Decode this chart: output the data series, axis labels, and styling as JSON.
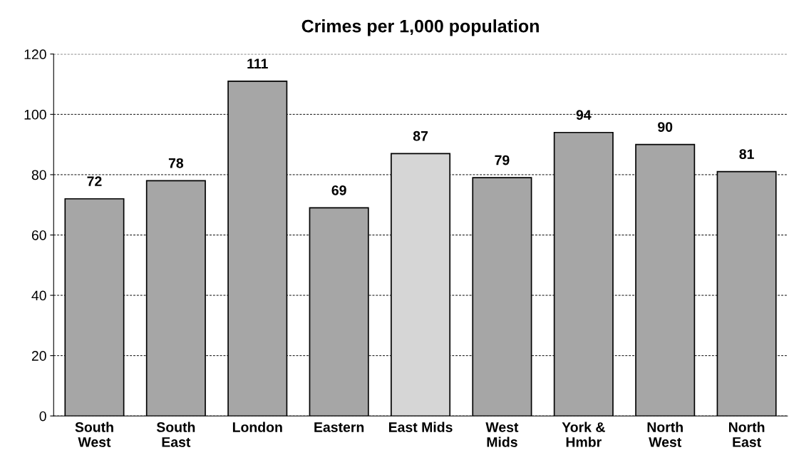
{
  "chart_data": {
    "type": "bar",
    "title": "Crimes per 1,000 population",
    "categories": [
      "South\nWest",
      "South\nEast",
      "London",
      "Eastern",
      "East Mids",
      "West\nMids",
      "York &\nHmbr",
      "North\nWest",
      "North\nEast"
    ],
    "values": [
      72,
      78,
      111,
      69,
      87,
      79,
      94,
      90,
      81
    ],
    "colors": [
      "#a6a6a6",
      "#a6a6a6",
      "#a6a6a6",
      "#a6a6a6",
      "#d6d6d6",
      "#a6a6a6",
      "#a6a6a6",
      "#a6a6a6",
      "#a6a6a6"
    ],
    "ylim": [
      0,
      120
    ],
    "yticks": [
      0,
      20,
      40,
      60,
      80,
      100,
      120
    ],
    "grid": "y",
    "data_labels": true
  }
}
